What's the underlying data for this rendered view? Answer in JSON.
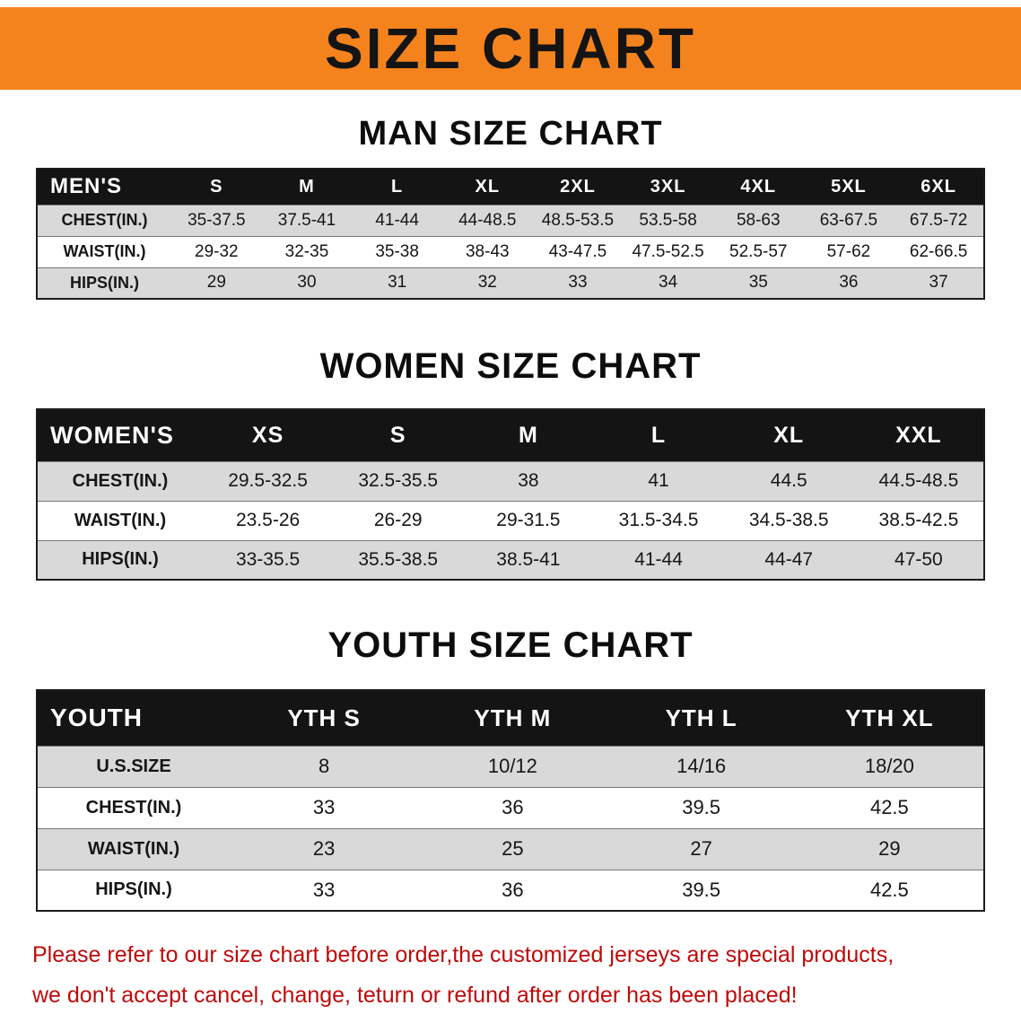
{
  "banner": {
    "title": "SIZE CHART"
  },
  "colors": {
    "banner_bg": "#f5831d",
    "table_header_bg": "#141414",
    "row_gray": "#d9d9d9",
    "notice_red": "#bf0a0a"
  },
  "sections": [
    {
      "heading": "MAN SIZE CHART",
      "table": {
        "header": [
          "MEN'S",
          "S",
          "M",
          "L",
          "XL",
          "2XL",
          "3XL",
          "4XL",
          "5XL",
          "6XL"
        ],
        "rows": [
          [
            "CHEST(IN.)",
            "35-37.5",
            "37.5-41",
            "41-44",
            "44-48.5",
            "48.5-53.5",
            "53.5-58",
            "58-63",
            "63-67.5",
            "67.5-72"
          ],
          [
            "WAIST(IN.)",
            "29-32",
            "32-35",
            "35-38",
            "38-43",
            "43-47.5",
            "47.5-52.5",
            "52.5-57",
            "57-62",
            "62-66.5"
          ],
          [
            "HIPS(IN.)",
            "29",
            "30",
            "31",
            "32",
            "33",
            "34",
            "35",
            "36",
            "37"
          ]
        ]
      }
    },
    {
      "heading": "WOMEN SIZE CHART",
      "table": {
        "header": [
          "WOMEN'S",
          "XS",
          "S",
          "M",
          "L",
          "XL",
          "XXL"
        ],
        "rows": [
          [
            "CHEST(IN.)",
            "29.5-32.5",
            "32.5-35.5",
            "38",
            "41",
            "44.5",
            "44.5-48.5"
          ],
          [
            "WAIST(IN.)",
            "23.5-26",
            "26-29",
            "29-31.5",
            "31.5-34.5",
            "34.5-38.5",
            "38.5-42.5"
          ],
          [
            "HIPS(IN.)",
            "33-35.5",
            "35.5-38.5",
            "38.5-41",
            "41-44",
            "44-47",
            "47-50"
          ]
        ]
      }
    },
    {
      "heading": "YOUTH SIZE CHART",
      "table": {
        "header": [
          "YOUTH",
          "YTH S",
          "YTH M",
          "YTH L",
          "YTH XL"
        ],
        "rows": [
          [
            "U.S.SIZE",
            "8",
            "10/12",
            "14/16",
            "18/20"
          ],
          [
            "CHEST(IN.)",
            "33",
            "36",
            "39.5",
            "42.5"
          ],
          [
            "WAIST(IN.)",
            "23",
            "25",
            "27",
            "29"
          ],
          [
            "HIPS(IN.)",
            "33",
            "36",
            "39.5",
            "42.5"
          ]
        ]
      }
    }
  ],
  "footer": {
    "line1": "Please refer to our size chart before order,the customized jerseys are special products,",
    "line2": "we don't accept cancel, change, teturn or refund after order has been placed!"
  }
}
